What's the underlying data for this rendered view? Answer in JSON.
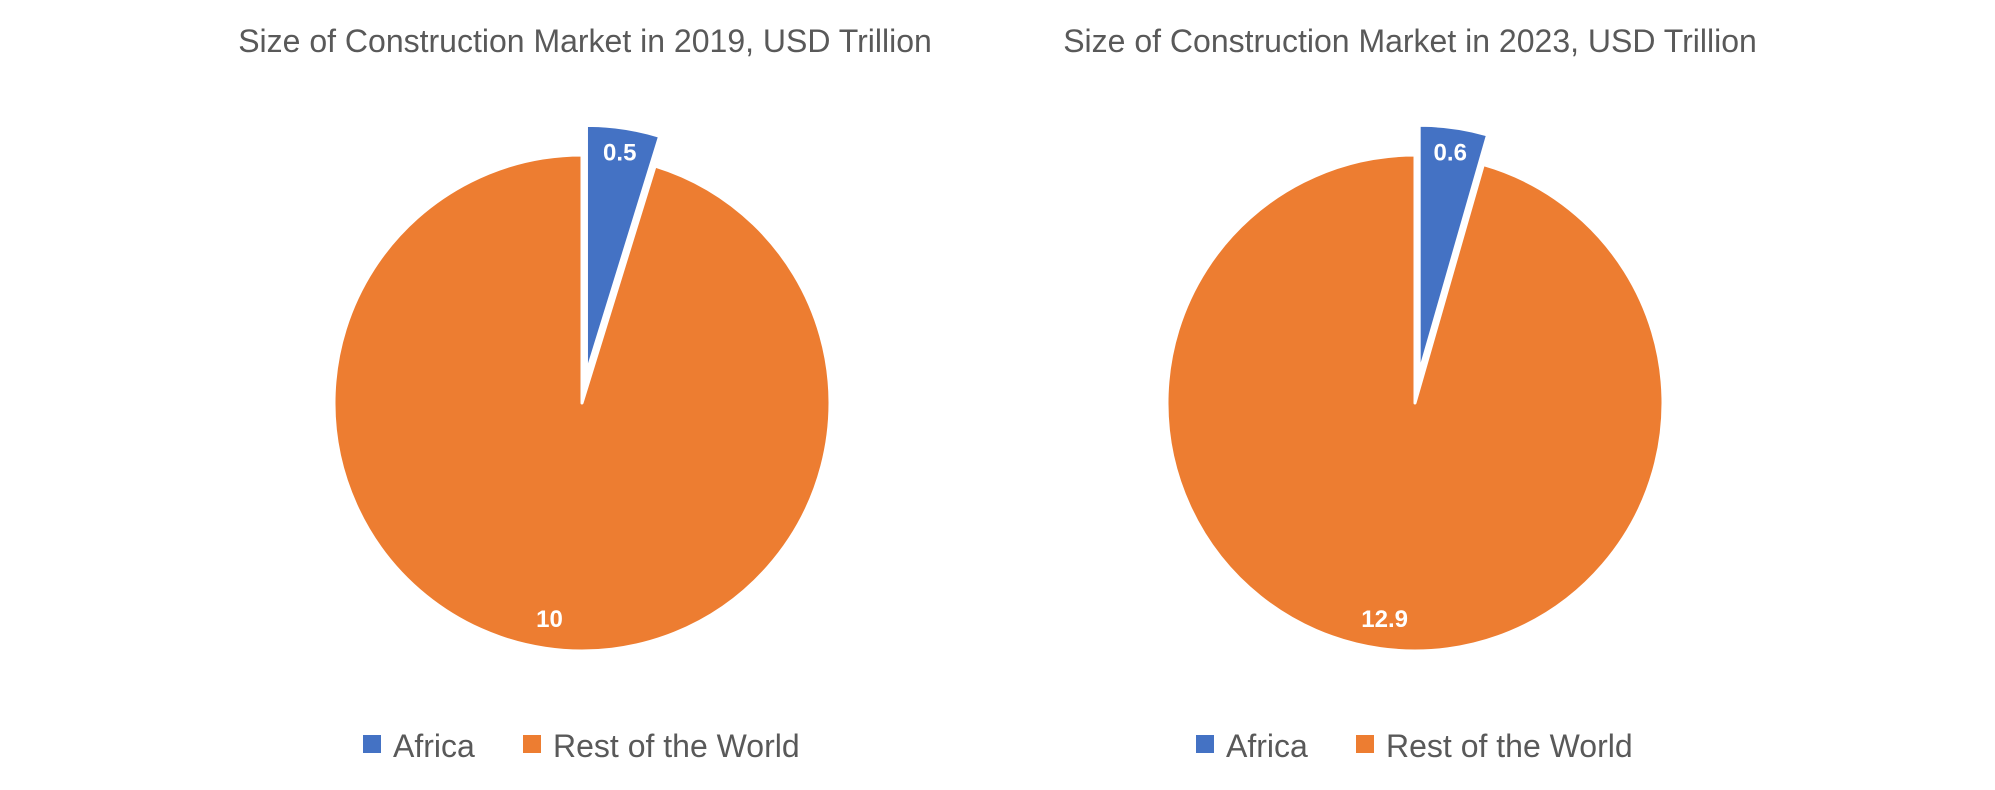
{
  "chart_data": [
    {
      "type": "pie",
      "title": "Size of Construction Market in 2019, USD Trillion",
      "categories": [
        "Africa",
        "Rest of the World"
      ],
      "values": [
        0.5,
        10
      ],
      "value_labels": [
        "0.5",
        "10"
      ],
      "colors": [
        "#4472C4",
        "#ED7D31"
      ],
      "exploded": [
        "Africa"
      ],
      "legend": "bottom"
    },
    {
      "type": "pie",
      "title": "Size of Construction Market in 2023, USD Trillion",
      "categories": [
        "Africa",
        "Rest of the World"
      ],
      "values": [
        0.6,
        12.9
      ],
      "value_labels": [
        "0.6",
        "12.9"
      ],
      "colors": [
        "#4472C4",
        "#ED7D31"
      ],
      "exploded": [
        "Africa"
      ],
      "legend": "bottom"
    }
  ]
}
